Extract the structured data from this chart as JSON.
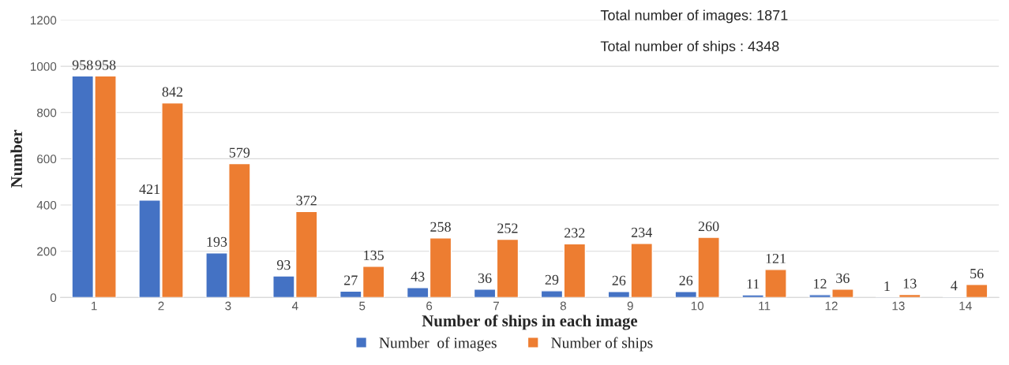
{
  "chart_data": {
    "type": "bar",
    "categories": [
      "1",
      "2",
      "3",
      "4",
      "5",
      "6",
      "7",
      "8",
      "9",
      "10",
      "11",
      "12",
      "13",
      "14"
    ],
    "series": [
      {
        "name": "Number  of images",
        "color": "#4472c4",
        "values": [
          958,
          421,
          193,
          93,
          27,
          43,
          36,
          29,
          26,
          26,
          11,
          12,
          1,
          4
        ]
      },
      {
        "name": "Number of ships",
        "color": "#ed7d31",
        "values": [
          958,
          842,
          579,
          372,
          135,
          258,
          252,
          232,
          234,
          260,
          121,
          36,
          13,
          56
        ]
      }
    ],
    "xlabel": "Number of ships in each image",
    "ylabel": "Number",
    "ylim": [
      0,
      1200
    ],
    "yticks": [
      0,
      200,
      400,
      600,
      800,
      1000,
      1200
    ],
    "grid": "y",
    "legend": "bottom",
    "data_labels": true,
    "annotations": [
      "Total number of images: 1871",
      "Total number of ships : 4348"
    ]
  }
}
